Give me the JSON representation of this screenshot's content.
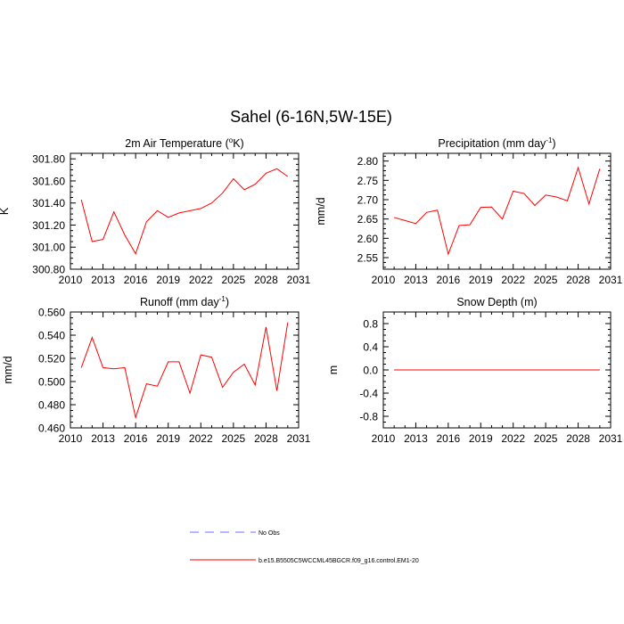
{
  "figure": {
    "title": "Sahel (6-16N,5W-15E)",
    "legend": [
      {
        "label": "No Obs",
        "style": "dashed",
        "color": "#6f6fff"
      },
      {
        "label": "b.e15.B5505C5WCCML45BGCR.f09_g16.control.EM1-20",
        "style": "solid",
        "color": "#ff0000"
      }
    ]
  },
  "chart_data": [
    {
      "type": "line",
      "title": "2m Air Temperature (",
      "title_sup": "o",
      "title_tail": "K)",
      "xlabel": "",
      "ylabel": "K",
      "xlim": [
        2010,
        2031
      ],
      "ylim": [
        300.8,
        301.85
      ],
      "xticks": [
        2010,
        2013,
        2016,
        2019,
        2022,
        2025,
        2028,
        2031
      ],
      "yticks": [
        300.8,
        301.0,
        301.2,
        301.4,
        301.6,
        301.8
      ],
      "ytick_labels": [
        "300.80",
        "301.00",
        "301.20",
        "301.40",
        "301.60",
        "301.80"
      ],
      "series": [
        {
          "name": "b.e15.B5505C5WCCML45BGCR.f09_g16.control.EM1-20",
          "color": "#ff0000",
          "x": [
            2011,
            2012,
            2013,
            2014,
            2015,
            2016,
            2017,
            2018,
            2019,
            2020,
            2021,
            2022,
            2023,
            2024,
            2025,
            2026,
            2027,
            2028,
            2029,
            2030
          ],
          "values": [
            301.43,
            301.05,
            301.07,
            301.32,
            301.11,
            300.94,
            301.23,
            301.33,
            301.27,
            301.31,
            301.33,
            301.35,
            301.4,
            301.49,
            301.62,
            301.52,
            301.57,
            301.67,
            301.71,
            301.64
          ]
        }
      ]
    },
    {
      "type": "line",
      "title": "Precipitation (mm day",
      "title_sup": "-1",
      "title_tail": ")",
      "xlabel": "",
      "ylabel": "mm/d",
      "xlim": [
        2010,
        2031
      ],
      "ylim": [
        2.52,
        2.82
      ],
      "xticks": [
        2010,
        2013,
        2016,
        2019,
        2022,
        2025,
        2028,
        2031
      ],
      "yticks": [
        2.55,
        2.6,
        2.65,
        2.7,
        2.75,
        2.8
      ],
      "ytick_labels": [
        "2.55",
        "2.60",
        "2.65",
        "2.70",
        "2.75",
        "2.80"
      ],
      "series": [
        {
          "name": "b.e15.B5505C5WCCML45BGCR.f09_g16.control.EM1-20",
          "color": "#ff0000",
          "x": [
            2011,
            2012,
            2013,
            2014,
            2015,
            2016,
            2017,
            2018,
            2019,
            2020,
            2021,
            2022,
            2023,
            2024,
            2025,
            2026,
            2027,
            2028,
            2029,
            2030
          ],
          "values": [
            2.654,
            2.646,
            2.638,
            2.667,
            2.673,
            2.559,
            2.633,
            2.635,
            2.68,
            2.681,
            2.65,
            2.722,
            2.716,
            2.685,
            2.712,
            2.707,
            2.697,
            2.783,
            2.689,
            2.78
          ]
        }
      ]
    },
    {
      "type": "line",
      "title": "Runoff (mm day",
      "title_sup": "-1",
      "title_tail": ")",
      "xlabel": "",
      "ylabel": "mm/d",
      "xlim": [
        2010,
        2031
      ],
      "ylim": [
        0.46,
        0.56
      ],
      "xticks": [
        2010,
        2013,
        2016,
        2019,
        2022,
        2025,
        2028,
        2031
      ],
      "yticks": [
        0.46,
        0.48,
        0.5,
        0.52,
        0.54,
        0.56
      ],
      "ytick_labels": [
        "0.460",
        "0.480",
        "0.500",
        "0.520",
        "0.540",
        "0.560"
      ],
      "series": [
        {
          "name": "b.e15.B5505C5WCCML45BGCR.f09_g16.control.EM1-20",
          "color": "#ff0000",
          "x": [
            2011,
            2012,
            2013,
            2014,
            2015,
            2016,
            2017,
            2018,
            2019,
            2020,
            2021,
            2022,
            2023,
            2024,
            2025,
            2026,
            2027,
            2028,
            2029,
            2030
          ],
          "values": [
            0.512,
            0.538,
            0.512,
            0.511,
            0.512,
            0.469,
            0.498,
            0.496,
            0.517,
            0.517,
            0.49,
            0.523,
            0.521,
            0.495,
            0.508,
            0.515,
            0.497,
            0.547,
            0.492,
            0.551
          ]
        }
      ]
    },
    {
      "type": "line",
      "title": "Snow Depth (m)",
      "title_sup": "",
      "title_tail": "",
      "xlabel": "",
      "ylabel": "m",
      "xlim": [
        2010,
        2031
      ],
      "ylim": [
        -1.0,
        1.0
      ],
      "xticks": [
        2010,
        2013,
        2016,
        2019,
        2022,
        2025,
        2028,
        2031
      ],
      "yticks": [
        -0.8,
        -0.4,
        0.0,
        0.4,
        0.8
      ],
      "ytick_labels": [
        "-0.8",
        "-0.4",
        "0.0",
        "0.4",
        "0.8"
      ],
      "series": [
        {
          "name": "b.e15.B5505C5WCCML45BGCR.f09_g16.control.EM1-20",
          "color": "#ff0000",
          "x": [
            2011,
            2012,
            2013,
            2014,
            2015,
            2016,
            2017,
            2018,
            2019,
            2020,
            2021,
            2022,
            2023,
            2024,
            2025,
            2026,
            2027,
            2028,
            2029,
            2030
          ],
          "values": [
            0,
            0,
            0,
            0,
            0,
            0,
            0,
            0,
            0,
            0,
            0,
            0,
            0,
            0,
            0,
            0,
            0,
            0,
            0,
            0
          ]
        }
      ]
    }
  ]
}
